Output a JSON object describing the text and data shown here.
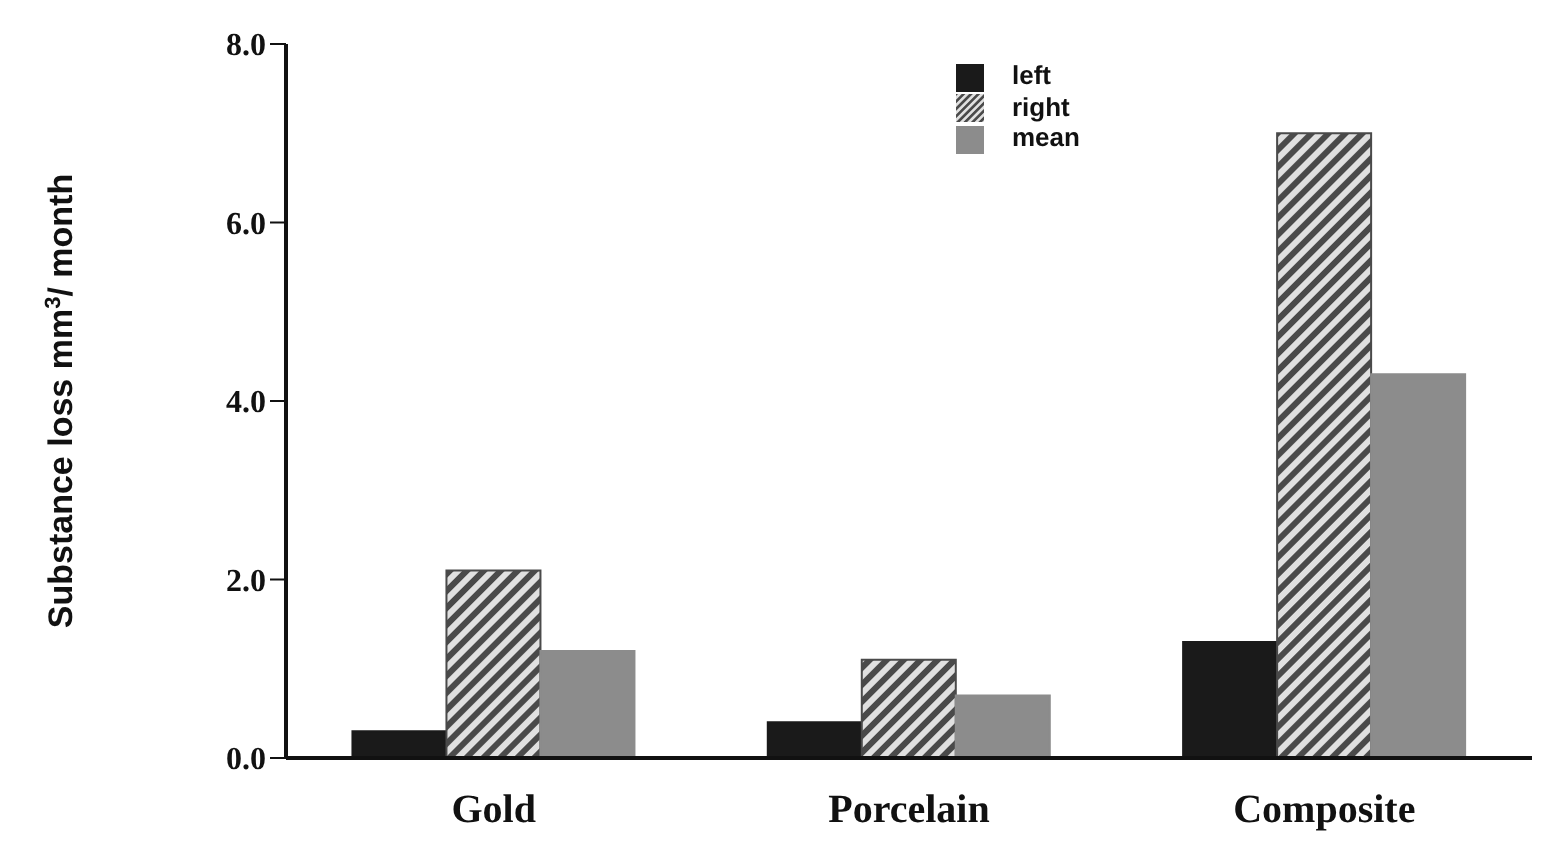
{
  "chart_data": {
    "type": "bar",
    "ylabel": "Substance loss mm$^{3}$/ month",
    "categories": [
      "Gold",
      "Porcelain",
      "Composite"
    ],
    "series": [
      {
        "name": "left",
        "color": "#1a1a1a",
        "values": [
          0.3,
          0.4,
          1.3
        ]
      },
      {
        "name": "right",
        "color": "#4a4a4a",
        "values": [
          2.1,
          1.1,
          7.0
        ]
      },
      {
        "name": "mean",
        "color": "#8c8c8c",
        "values": [
          1.2,
          0.7,
          4.3
        ]
      }
    ],
    "ylim": [
      0,
      8
    ],
    "yticks": [
      {
        "value": 0,
        "label": "0.0"
      },
      {
        "value": 2,
        "label": "2.0"
      },
      {
        "value": 4,
        "label": "4.0"
      },
      {
        "value": 6,
        "label": "6.0"
      },
      {
        "value": 8,
        "label": "8.0"
      }
    ],
    "grid": false,
    "legend": "top"
  }
}
